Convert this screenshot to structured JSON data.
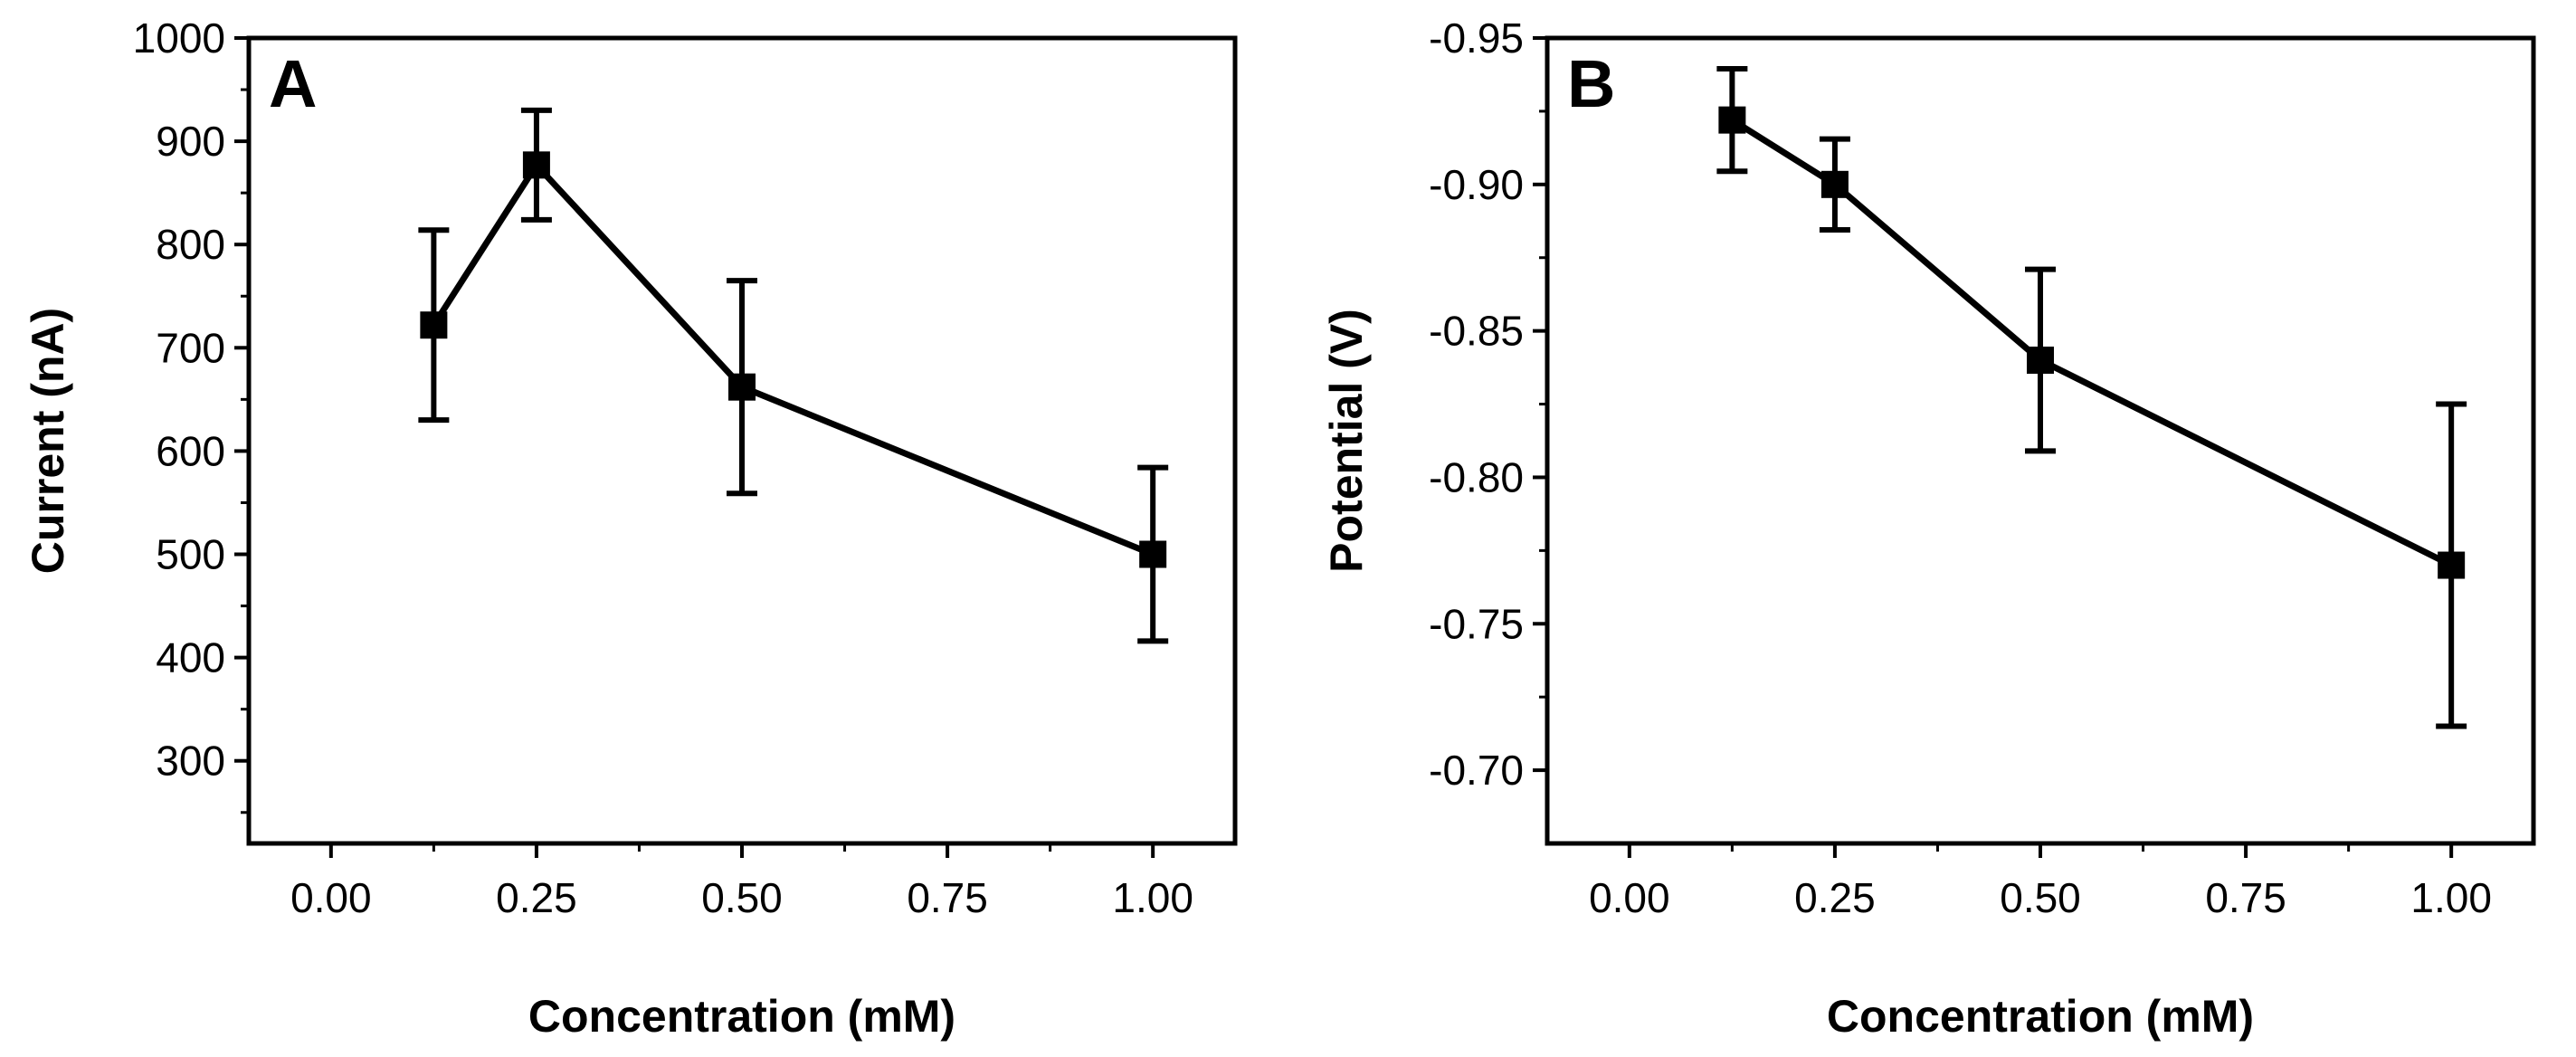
{
  "chart_data": [
    {
      "type": "line",
      "panel_label": "A",
      "title": "",
      "xlabel": "Concentration (mM)",
      "ylabel": "Current (nA)",
      "xlim": [
        -0.1,
        1.1
      ],
      "ylim": [
        220,
        1000
      ],
      "y_reversed": false,
      "grid": false,
      "x_ticks": [
        0.0,
        0.25,
        0.5,
        0.75,
        1.0
      ],
      "x_tick_labels": [
        "0.00",
        "0.25",
        "0.50",
        "0.75",
        "1.00"
      ],
      "y_ticks": [
        300,
        400,
        500,
        600,
        700,
        800,
        900,
        1000
      ],
      "y_tick_labels": [
        "300",
        "400",
        "500",
        "600",
        "700",
        "800",
        "900",
        "1000"
      ],
      "series": [
        {
          "name": "Current",
          "x": [
            0.125,
            0.25,
            0.5,
            1.0
          ],
          "y": [
            722,
            877,
            662,
            500
          ],
          "error": [
            92,
            53,
            103,
            84
          ]
        }
      ]
    },
    {
      "type": "line",
      "panel_label": "B",
      "title": "",
      "xlabel": "Concentration (mM)",
      "ylabel": "Potential (V)",
      "xlim": [
        -0.1,
        1.1
      ],
      "ylim": [
        -0.675,
        -0.95
      ],
      "y_reversed": true,
      "grid": false,
      "x_ticks": [
        0.0,
        0.25,
        0.5,
        0.75,
        1.0
      ],
      "x_tick_labels": [
        "0.00",
        "0.25",
        "0.50",
        "0.75",
        "1.00"
      ],
      "y_ticks": [
        -0.7,
        -0.75,
        -0.8,
        -0.85,
        -0.9,
        -0.95
      ],
      "y_tick_labels": [
        "-0.70",
        "-0.75",
        "-0.80",
        "-0.85",
        "-0.90",
        "-0.95"
      ],
      "series": [
        {
          "name": "Potential",
          "x": [
            0.125,
            0.25,
            0.5,
            1.0
          ],
          "y": [
            -0.922,
            -0.9,
            -0.84,
            -0.77
          ],
          "error": [
            0.0175,
            0.0155,
            0.031,
            0.055
          ]
        }
      ]
    }
  ]
}
